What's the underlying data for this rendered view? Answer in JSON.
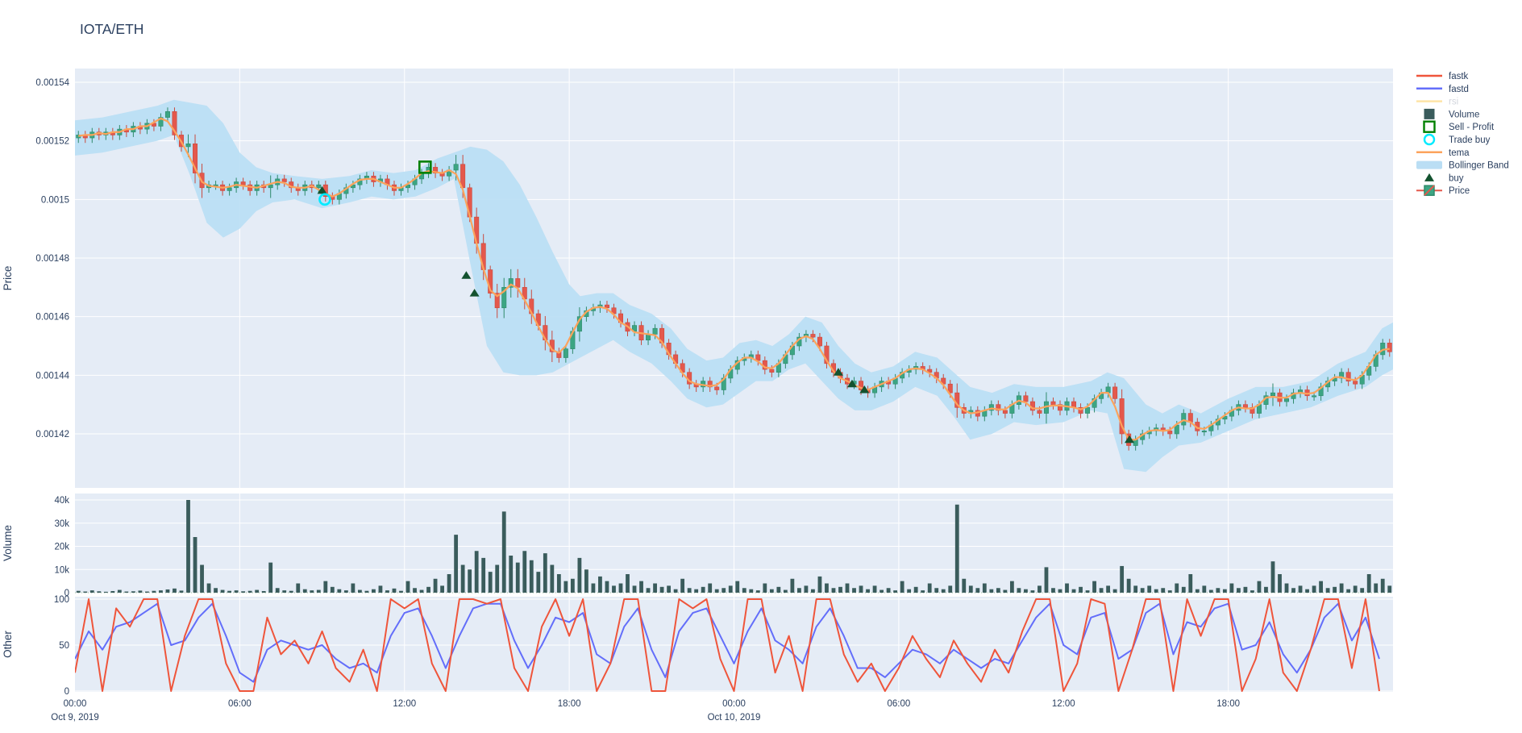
{
  "header": {
    "title": "IOTA/ETH"
  },
  "colors": {
    "text": "#2a3f5f",
    "muted_text": "#a6adbb",
    "paper_bg": "#ffffff",
    "plot_bg": "#e5ecf6",
    "grid": "#ffffff",
    "fastk": "#ef553b",
    "fastd": "#636efa",
    "rsi": "#fecb52",
    "volume": "#3a5c5c",
    "sell_profit": "#008000",
    "trade_buy": "#00ebff",
    "tema": "#fca35c",
    "bollinger": "#badef4",
    "buy": "#13522f",
    "candle_up": "#3ca583",
    "candle_up_line": "#2f8a6b",
    "candle_down": "#e4584c",
    "candle_down_line": "#c94a3f"
  },
  "legend": {
    "items": [
      {
        "label": "fastk",
        "type": "line",
        "color": "#ef553b",
        "faded": false
      },
      {
        "label": "fastd",
        "type": "line",
        "color": "#636efa",
        "faded": false
      },
      {
        "label": "rsi",
        "type": "line",
        "color": "#fecb52",
        "faded": true
      },
      {
        "label": "Volume",
        "type": "square",
        "color": "#3a5c5c",
        "faded": false
      },
      {
        "label": "Sell - Profit",
        "type": "open-square",
        "color": "#008000",
        "faded": false
      },
      {
        "label": "Trade buy",
        "type": "open-circle",
        "color": "#00ebff",
        "faded": false
      },
      {
        "label": "tema",
        "type": "line",
        "color": "#fca35c",
        "faded": false
      },
      {
        "label": "Bollinger Band",
        "type": "band",
        "color": "#badef4",
        "faded": false
      },
      {
        "label": "buy",
        "type": "triangle",
        "color": "#13522f",
        "faded": false
      },
      {
        "label": "Price",
        "type": "candle",
        "color": "#3ca583",
        "faded": false
      }
    ]
  },
  "chart_data": {
    "type": "candlestick",
    "title": "IOTA/ETH",
    "time_start_label": "Oct 9, 2019 00:00",
    "candle_interval_hours": 0.25,
    "first_open_1e6": 1521,
    "panels": [
      {
        "name": "price",
        "ylabel": "Price",
        "ticks": [
          {
            "v": 1540,
            "label": "0.00154"
          },
          {
            "v": 1520,
            "label": "0.00152"
          },
          {
            "v": 1500,
            "label": "0.0015"
          },
          {
            "v": 1480,
            "label": "0.00148"
          },
          {
            "v": 1460,
            "label": "0.00146"
          },
          {
            "v": 1440,
            "label": "0.00144"
          },
          {
            "v": 1420,
            "label": "0.00142"
          }
        ]
      },
      {
        "name": "volume",
        "ylabel": "Volume",
        "ticks": [
          {
            "v": 0,
            "label": "0"
          },
          {
            "v": 100,
            "label": "10k"
          },
          {
            "v": 200,
            "label": "20k"
          },
          {
            "v": 300,
            "label": "30k"
          },
          {
            "v": 400,
            "label": "40k"
          }
        ]
      },
      {
        "name": "other",
        "ylabel": "Other",
        "ticks": [
          {
            "v": 0,
            "label": "0"
          },
          {
            "v": 50,
            "label": "50"
          },
          {
            "v": 100,
            "label": "100"
          }
        ]
      }
    ],
    "x_ticks": [
      {
        "t": 0,
        "label": "00:00",
        "sub": "Oct 9, 2019"
      },
      {
        "t": 6,
        "label": "06:00",
        "sub": ""
      },
      {
        "t": 12,
        "label": "12:00",
        "sub": ""
      },
      {
        "t": 18,
        "label": "18:00",
        "sub": ""
      },
      {
        "t": 24,
        "label": "00:00",
        "sub": "Oct 10, 2019"
      },
      {
        "t": 30,
        "label": "06:00",
        "sub": ""
      },
      {
        "t": 36,
        "label": "12:00",
        "sub": ""
      },
      {
        "t": 42,
        "label": "18:00",
        "sub": ""
      }
    ],
    "closes_1e6": [
      1522,
      1521,
      1523,
      1522,
      1523,
      1522,
      1524,
      1523,
      1525,
      1524,
      1526,
      1525,
      1528,
      1530,
      1522,
      1518,
      1519,
      1509,
      1504,
      1505,
      1505,
      1503,
      1504,
      1506,
      1505,
      1503,
      1505,
      1504,
      1505,
      1507,
      1506,
      1504,
      1503,
      1505,
      1504,
      1505,
      1501,
      1500,
      1502,
      1504,
      1505,
      1507,
      1508,
      1506,
      1507,
      1505,
      1503,
      1504,
      1505,
      1507,
      1509,
      1511,
      1509,
      1508,
      1510,
      1512,
      1504,
      1494,
      1485,
      1476,
      1468,
      1463,
      1470,
      1473,
      1470,
      1466,
      1461,
      1457,
      1452,
      1448,
      1446,
      1449,
      1455,
      1460,
      1462,
      1463,
      1464,
      1463,
      1461,
      1458,
      1455,
      1457,
      1452,
      1454,
      1456,
      1451,
      1447,
      1444,
      1441,
      1437,
      1436,
      1438,
      1436,
      1435,
      1439,
      1442,
      1445,
      1446,
      1447,
      1445,
      1442,
      1441,
      1444,
      1447,
      1450,
      1453,
      1454,
      1453,
      1450,
      1444,
      1441,
      1439,
      1437,
      1438,
      1435,
      1434,
      1436,
      1438,
      1437,
      1439,
      1441,
      1442,
      1443,
      1442,
      1441,
      1439,
      1437,
      1434,
      1429,
      1427,
      1428,
      1426,
      1428,
      1430,
      1428,
      1427,
      1430,
      1433,
      1431,
      1428,
      1427,
      1431,
      1430,
      1428,
      1431,
      1429,
      1427,
      1429,
      1432,
      1434,
      1436,
      1432,
      1420,
      1416,
      1418,
      1420,
      1421,
      1422,
      1421,
      1420,
      1423,
      1427,
      1424,
      1421,
      1421,
      1423,
      1425,
      1426,
      1428,
      1430,
      1429,
      1427,
      1430,
      1433,
      1434,
      1431,
      1432,
      1434,
      1435,
      1433,
      1433,
      1436,
      1438,
      1439,
      1441,
      1438,
      1437,
      1440,
      1443,
      1447,
      1451,
      1448
    ],
    "volumes_hundreds": [
      8,
      5,
      10,
      6,
      4,
      7,
      12,
      5,
      6,
      9,
      5,
      8,
      10,
      14,
      18,
      9,
      400,
      240,
      120,
      40,
      20,
      12,
      8,
      10,
      6,
      8,
      12,
      7,
      130,
      20,
      10,
      8,
      40,
      15,
      10,
      12,
      50,
      25,
      15,
      10,
      40,
      12,
      8,
      15,
      30,
      10,
      18,
      8,
      50,
      20,
      12,
      25,
      60,
      30,
      80,
      250,
      120,
      100,
      180,
      150,
      90,
      120,
      350,
      160,
      130,
      180,
      140,
      90,
      170,
      120,
      80,
      50,
      60,
      150,
      100,
      40,
      70,
      50,
      30,
      40,
      80,
      30,
      50,
      20,
      40,
      25,
      30,
      15,
      60,
      20,
      15,
      25,
      40,
      15,
      20,
      30,
      50,
      20,
      15,
      10,
      40,
      15,
      25,
      12,
      60,
      20,
      30,
      15,
      70,
      40,
      20,
      25,
      40,
      20,
      30,
      15,
      30,
      12,
      20,
      10,
      50,
      15,
      25,
      10,
      40,
      20,
      15,
      30,
      380,
      60,
      30,
      20,
      40,
      15,
      20,
      12,
      50,
      20,
      15,
      10,
      30,
      110,
      20,
      15,
      40,
      15,
      25,
      10,
      50,
      20,
      30,
      15,
      115,
      60,
      30,
      20,
      30,
      15,
      20,
      10,
      40,
      25,
      80,
      15,
      30,
      12,
      20,
      15,
      40,
      20,
      25,
      10,
      50,
      25,
      135,
      80,
      40,
      20,
      30,
      15,
      30,
      50,
      20,
      25,
      40,
      15,
      30,
      20,
      80,
      40,
      60,
      30
    ],
    "bollinger": {
      "t": [
        0,
        1,
        2,
        3,
        3.6,
        4.2,
        4.8,
        5.4,
        6,
        6.6,
        7.2,
        8,
        9,
        10,
        10.8,
        11.6,
        12.4,
        13.2,
        13.8,
        14.4,
        15,
        15.6,
        16.2,
        16.8,
        17.4,
        18,
        18.4,
        19,
        19.6,
        20.2,
        21,
        21.7,
        22.3,
        23,
        23.6,
        24.2,
        24.8,
        25.4,
        26,
        26.6,
        27.2,
        27.8,
        28.4,
        29,
        29.8,
        30.6,
        31.4,
        32,
        32.6,
        33.4,
        34.2,
        35,
        36,
        37,
        37.6,
        38.2,
        39,
        39.6,
        40.2,
        41,
        42,
        43,
        44,
        45,
        46,
        47,
        47.6,
        48
      ],
      "upper": [
        1527,
        1528,
        1530,
        1532,
        1534,
        1533,
        1532,
        1526,
        1516,
        1511,
        1509,
        1508,
        1507,
        1508,
        1510,
        1509,
        1510,
        1514,
        1516,
        1518,
        1517,
        1513,
        1505,
        1494,
        1482,
        1471,
        1467,
        1468,
        1468,
        1464,
        1461,
        1456,
        1449,
        1445,
        1446,
        1451,
        1452,
        1450,
        1454,
        1460,
        1458,
        1450,
        1444,
        1441,
        1443,
        1448,
        1446,
        1441,
        1436,
        1434,
        1437,
        1436,
        1436,
        1438,
        1441,
        1439,
        1430,
        1427,
        1430,
        1427,
        1432,
        1436,
        1436,
        1438,
        1444,
        1448,
        1456,
        1458
      ],
      "lower": [
        1515,
        1516,
        1518,
        1520,
        1522,
        1508,
        1492,
        1487,
        1490,
        1496,
        1499,
        1500,
        1497,
        1499,
        1501,
        1500,
        1501,
        1504,
        1507,
        1478,
        1450,
        1441,
        1440,
        1440,
        1441,
        1444,
        1446,
        1449,
        1452,
        1448,
        1444,
        1438,
        1432,
        1429,
        1430,
        1434,
        1438,
        1438,
        1442,
        1444,
        1438,
        1432,
        1428,
        1428,
        1431,
        1436,
        1433,
        1426,
        1418,
        1420,
        1424,
        1423,
        1424,
        1428,
        1427,
        1408,
        1407,
        1412,
        1416,
        1417,
        1421,
        1425,
        1427,
        1429,
        1433,
        1436,
        1440,
        1442
      ]
    },
    "oscillator_t_step": 0.5,
    "fastk": [
      20,
      100,
      0,
      90,
      70,
      100,
      100,
      0,
      60,
      100,
      100,
      30,
      0,
      0,
      80,
      40,
      55,
      30,
      65,
      25,
      10,
      45,
      0,
      100,
      90,
      100,
      30,
      0,
      100,
      100,
      95,
      100,
      25,
      0,
      70,
      100,
      60,
      100,
      0,
      30,
      100,
      100,
      0,
      0,
      100,
      90,
      100,
      35,
      0,
      100,
      100,
      20,
      60,
      0,
      100,
      100,
      40,
      10,
      30,
      0,
      25,
      60,
      35,
      15,
      55,
      30,
      10,
      45,
      20,
      65,
      100,
      100,
      0,
      30,
      100,
      95,
      0,
      45,
      100,
      100,
      0,
      100,
      60,
      100,
      100,
      0,
      35,
      100,
      20,
      0,
      45,
      100,
      100,
      25,
      100,
      0
    ],
    "fastd": [
      35,
      65,
      45,
      70,
      75,
      85,
      95,
      50,
      55,
      80,
      95,
      60,
      20,
      10,
      45,
      55,
      50,
      45,
      50,
      35,
      25,
      30,
      20,
      60,
      85,
      90,
      60,
      25,
      60,
      90,
      95,
      95,
      55,
      25,
      50,
      80,
      75,
      85,
      40,
      30,
      70,
      90,
      45,
      15,
      65,
      85,
      90,
      60,
      30,
      65,
      90,
      55,
      45,
      30,
      70,
      90,
      60,
      25,
      25,
      15,
      30,
      45,
      40,
      30,
      45,
      35,
      25,
      35,
      30,
      55,
      80,
      95,
      50,
      40,
      80,
      85,
      35,
      45,
      85,
      95,
      40,
      75,
      70,
      90,
      95,
      45,
      50,
      75,
      40,
      20,
      45,
      80,
      95,
      55,
      80,
      35
    ],
    "markers": {
      "buy": [
        [
          9.0,
          1503
        ],
        [
          14.25,
          1474
        ],
        [
          14.55,
          1468
        ],
        [
          27.8,
          1441
        ],
        [
          28.3,
          1437
        ],
        [
          28.75,
          1435
        ],
        [
          38.4,
          1418
        ]
      ],
      "trade_buy": [
        [
          9.1,
          1500
        ]
      ],
      "sell_profit": [
        [
          12.75,
          1511
        ]
      ]
    },
    "hidden_traces": [
      "rsi"
    ]
  }
}
